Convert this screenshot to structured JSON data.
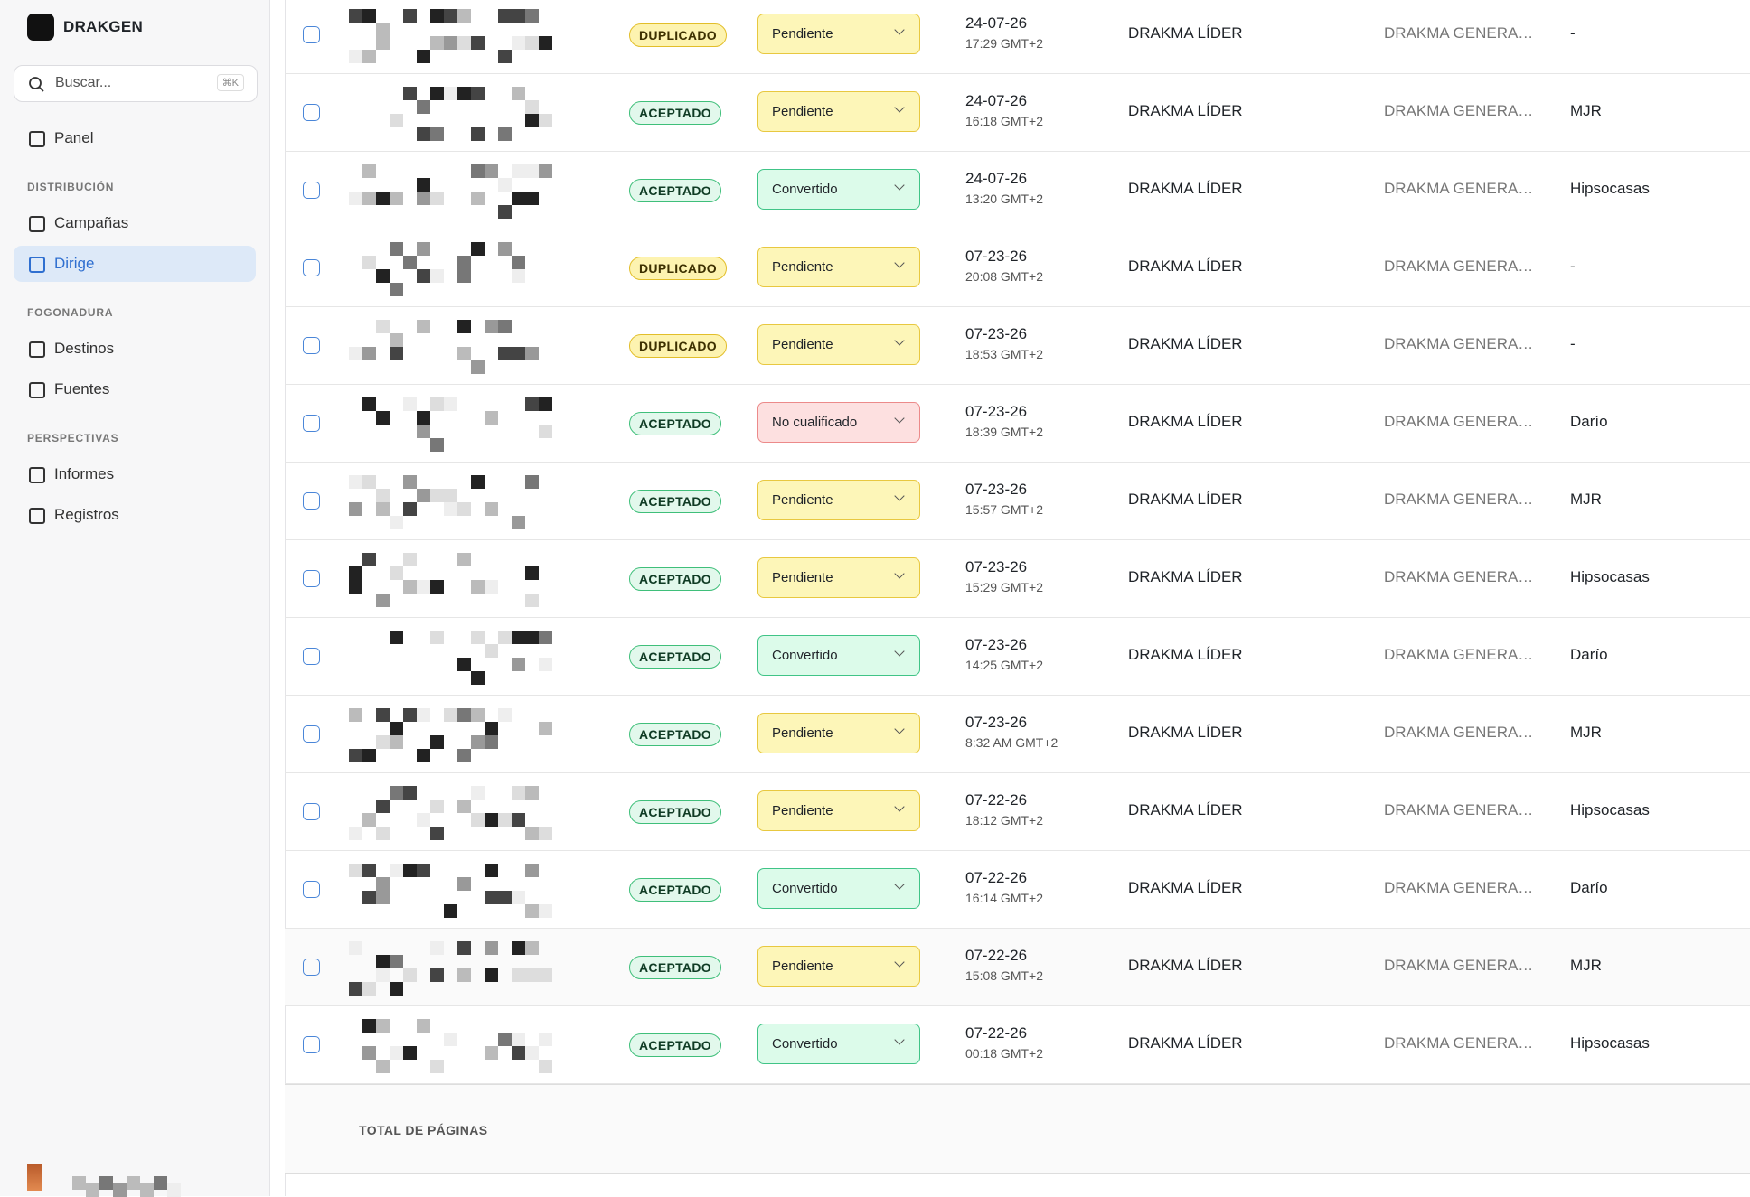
{
  "sidebar": {
    "brand": "DRAKGEN",
    "search": {
      "placeholder": "Buscar...",
      "shortcut": "⌘K"
    },
    "sections": [
      {
        "items": [
          {
            "label": "Panel",
            "active": false
          }
        ]
      },
      {
        "title": "DISTRIBUCIÓN",
        "items": [
          {
            "label": "Campañas",
            "active": false
          },
          {
            "label": "Dirige",
            "active": true
          }
        ]
      },
      {
        "title": "FOGONADURA",
        "items": [
          {
            "label": "Destinos",
            "active": false
          },
          {
            "label": "Fuentes",
            "active": false
          }
        ]
      },
      {
        "title": "PERSPECTIVAS",
        "items": [
          {
            "label": "Informes",
            "active": false
          },
          {
            "label": "Registros",
            "active": false
          }
        ]
      }
    ]
  },
  "table": {
    "rows": [
      {
        "status": "DUPLICADO",
        "status_tone": "yellow",
        "stage": "Pendiente",
        "stage_tone": "yellow",
        "date": "24-07-26",
        "time": "17:29 GMT+2",
        "owner": "DRAKMA LÍDER",
        "source": "DRAKMA GENERA…",
        "agent": "-"
      },
      {
        "status": "ACEPTADO",
        "status_tone": "green",
        "stage": "Pendiente",
        "stage_tone": "yellow",
        "date": "24-07-26",
        "time": "16:18 GMT+2",
        "owner": "DRAKMA LÍDER",
        "source": "DRAKMA GENERA…",
        "agent": "MJR"
      },
      {
        "status": "ACEPTADO",
        "status_tone": "green",
        "stage": "Convertido",
        "stage_tone": "green",
        "date": "24-07-26",
        "time": "13:20 GMT+2",
        "owner": "DRAKMA LÍDER",
        "source": "DRAKMA GENERA…",
        "agent": "Hipsocasas"
      },
      {
        "status": "DUPLICADO",
        "status_tone": "yellow",
        "stage": "Pendiente",
        "stage_tone": "yellow",
        "date": "07-23-26",
        "time": "20:08 GMT+2",
        "owner": "DRAKMA LÍDER",
        "source": "DRAKMA GENERA…",
        "agent": "-"
      },
      {
        "status": "DUPLICADO",
        "status_tone": "yellow",
        "stage": "Pendiente",
        "stage_tone": "yellow",
        "date": "07-23-26",
        "time": "18:53 GMT+2",
        "owner": "DRAKMA LÍDER",
        "source": "DRAKMA GENERA…",
        "agent": "-"
      },
      {
        "status": "ACEPTADO",
        "status_tone": "green",
        "stage": "No cualificado",
        "stage_tone": "red",
        "date": "07-23-26",
        "time": "18:39 GMT+2",
        "owner": "DRAKMA LÍDER",
        "source": "DRAKMA GENERA…",
        "agent": "Darío"
      },
      {
        "status": "ACEPTADO",
        "status_tone": "green",
        "stage": "Pendiente",
        "stage_tone": "yellow",
        "date": "07-23-26",
        "time": "15:57 GMT+2",
        "owner": "DRAKMA LÍDER",
        "source": "DRAKMA GENERA…",
        "agent": "MJR"
      },
      {
        "status": "ACEPTADO",
        "status_tone": "green",
        "stage": "Pendiente",
        "stage_tone": "yellow",
        "date": "07-23-26",
        "time": "15:29 GMT+2",
        "owner": "DRAKMA LÍDER",
        "source": "DRAKMA GENERA…",
        "agent": "Hipsocasas"
      },
      {
        "status": "ACEPTADO",
        "status_tone": "green",
        "stage": "Convertido",
        "stage_tone": "green",
        "date": "07-23-26",
        "time": "14:25 GMT+2",
        "owner": "DRAKMA LÍDER",
        "source": "DRAKMA GENERA…",
        "agent": "Darío"
      },
      {
        "status": "ACEPTADO",
        "status_tone": "green",
        "stage": "Pendiente",
        "stage_tone": "yellow",
        "date": "07-23-26",
        "time": "8:32 AM GMT+2",
        "owner": "DRAKMA LÍDER",
        "source": "DRAKMA GENERA…",
        "agent": "MJR"
      },
      {
        "status": "ACEPTADO",
        "status_tone": "green",
        "stage": "Pendiente",
        "stage_tone": "yellow",
        "date": "07-22-26",
        "time": "18:12 GMT+2",
        "owner": "DRAKMA LÍDER",
        "source": "DRAKMA GENERA…",
        "agent": "Hipsocasas"
      },
      {
        "status": "ACEPTADO",
        "status_tone": "green",
        "stage": "Convertido",
        "stage_tone": "green",
        "date": "07-22-26",
        "time": "16:14 GMT+2",
        "owner": "DRAKMA LÍDER",
        "source": "DRAKMA GENERA…",
        "agent": "Darío"
      },
      {
        "status": "ACEPTADO",
        "status_tone": "green",
        "stage": "Pendiente",
        "stage_tone": "yellow",
        "date": "07-22-26",
        "time": "15:08 GMT+2",
        "owner": "DRAKMA LÍDER",
        "source": "DRAKMA GENERA…",
        "agent": "MJR"
      },
      {
        "status": "ACEPTADO",
        "status_tone": "green",
        "stage": "Convertido",
        "stage_tone": "green",
        "date": "07-22-26",
        "time": "00:18 GMT+2",
        "owner": "DRAKMA LÍDER",
        "source": "DRAKMA GENERA…",
        "agent": "Hipsocasas"
      }
    ]
  },
  "footer": {
    "label": "TOTAL DE PÁGINAS"
  }
}
